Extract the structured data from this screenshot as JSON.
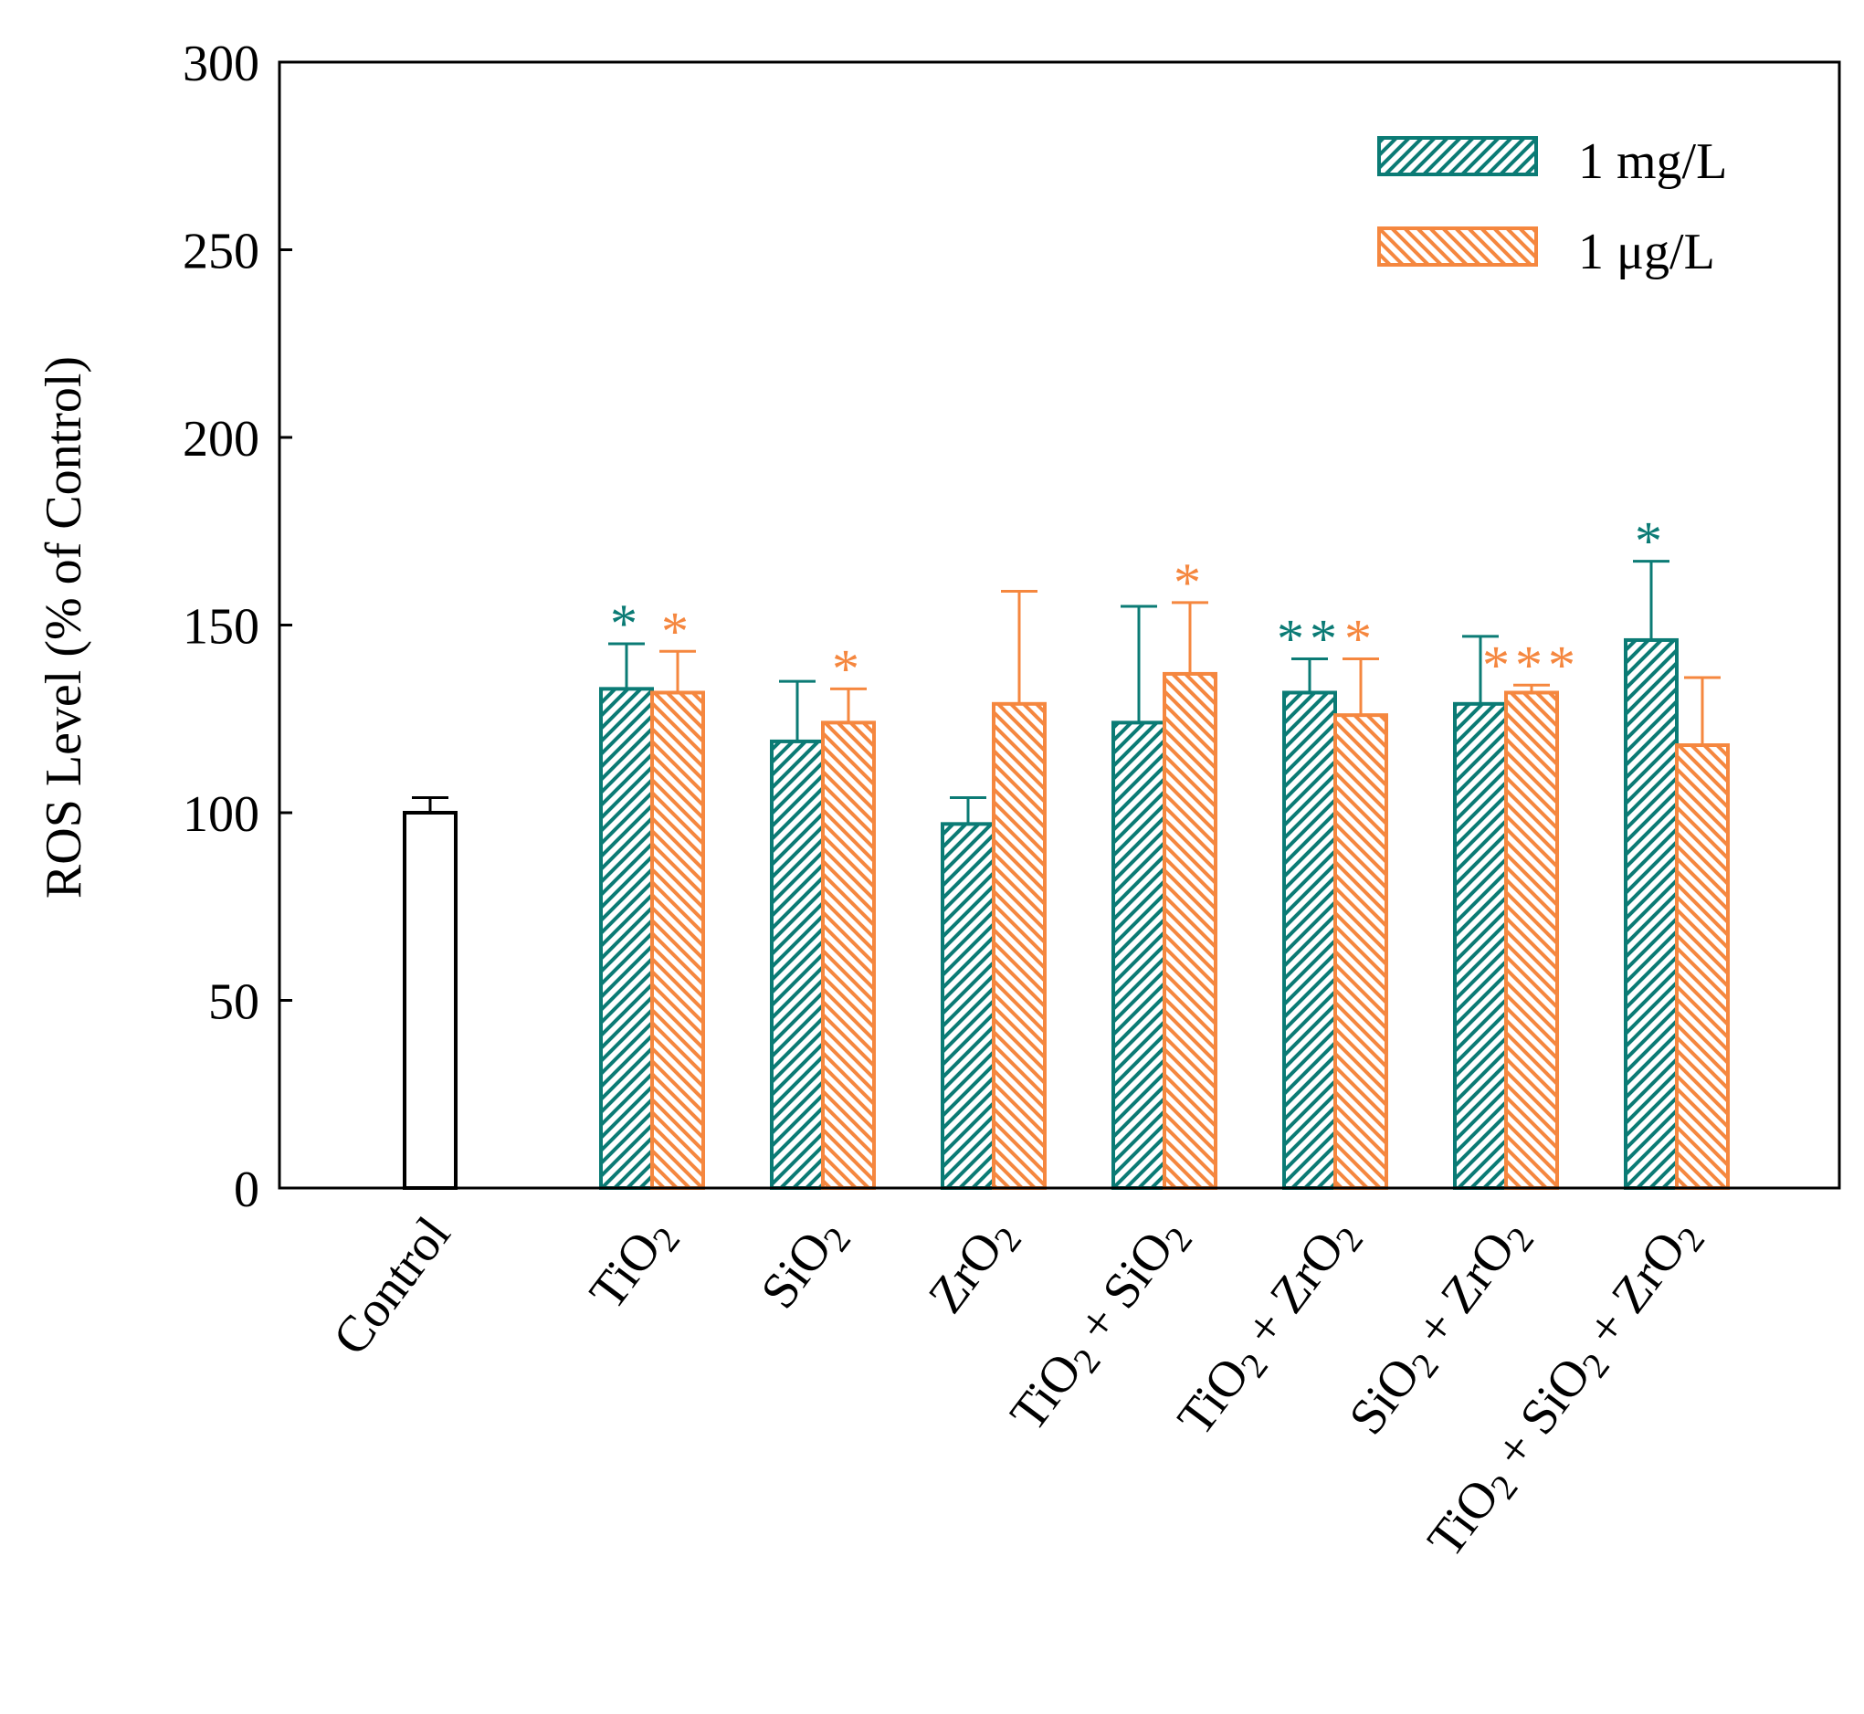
{
  "chart_data": {
    "type": "bar",
    "title": "",
    "xlabel": "",
    "ylabel": "ROS Level  (% of Control)",
    "ylim": [
      0,
      300
    ],
    "yticks": [
      0,
      50,
      100,
      150,
      200,
      250,
      300
    ],
    "grid": false,
    "legend_position": "top-right",
    "control": {
      "label": "Control",
      "value": 100,
      "error": 4,
      "color": "#ffffff"
    },
    "categories": [
      {
        "pre": "TiO",
        "sub": "2",
        "post": ""
      },
      {
        "pre": "SiO",
        "sub": "2",
        "post": ""
      },
      {
        "pre": "ZrO",
        "sub": "2",
        "post": ""
      },
      {
        "pre": "TiO",
        "sub": "2",
        "post": " + SiO",
        "sub2": "2"
      },
      {
        "pre": "TiO",
        "sub": "2",
        "post": " + ZrO",
        "sub2": "2"
      },
      {
        "pre": "SiO",
        "sub": "2",
        "post": " + ZrO",
        "sub2": "2"
      },
      {
        "pre": "TiO",
        "sub": "2",
        "post": " + SiO",
        "sub2": "2",
        "post2": " + ZrO",
        "sub3": "2"
      }
    ],
    "series": [
      {
        "name": "1 mg/L",
        "color": "#0b7b75",
        "hatch": "forward",
        "values": [
          133,
          119,
          97,
          124,
          132,
          129,
          146
        ],
        "errors": [
          12,
          16,
          7,
          31,
          9,
          18,
          21
        ],
        "stars": [
          "*",
          "",
          "",
          "",
          "**",
          "",
          "*"
        ]
      },
      {
        "name": "1 μg/L",
        "color": "#f5873f",
        "hatch": "backward",
        "values": [
          132,
          124,
          129,
          137,
          126,
          132,
          118
        ],
        "errors": [
          11,
          9,
          30,
          19,
          15,
          2,
          18
        ],
        "stars": [
          "*",
          "*",
          "",
          "*",
          "*",
          "***",
          ""
        ]
      }
    ]
  }
}
